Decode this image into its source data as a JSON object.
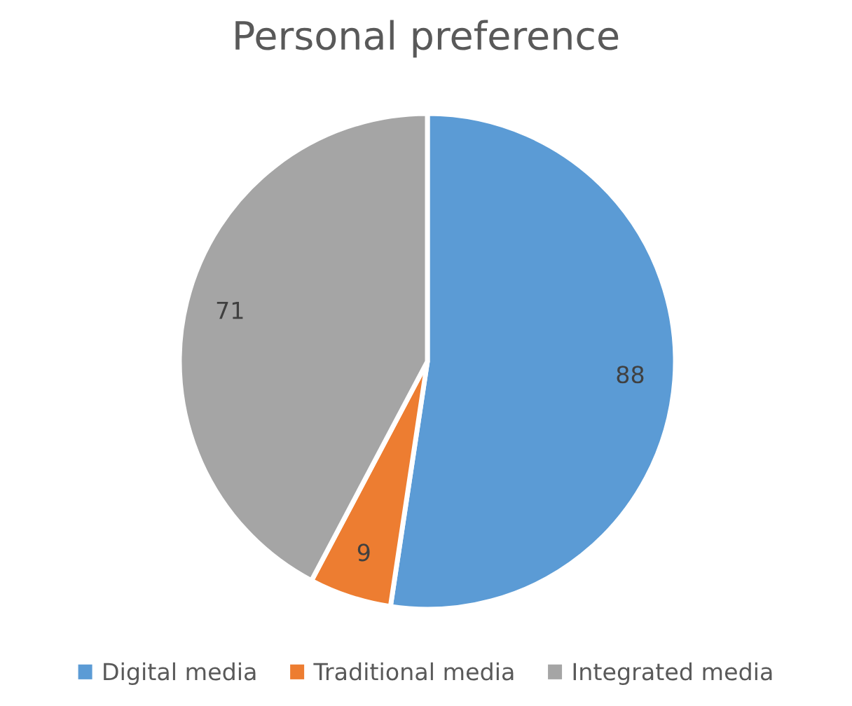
{
  "chart_data": {
    "type": "pie",
    "title": "Personal preference",
    "categories": [
      "Digital media",
      "Traditional media",
      "Integrated media"
    ],
    "values": [
      88,
      9,
      71
    ],
    "colors": [
      "#5b9bd5",
      "#ed7d31",
      "#a5a5a5"
    ],
    "data_labels": true,
    "legend": "bottom"
  }
}
